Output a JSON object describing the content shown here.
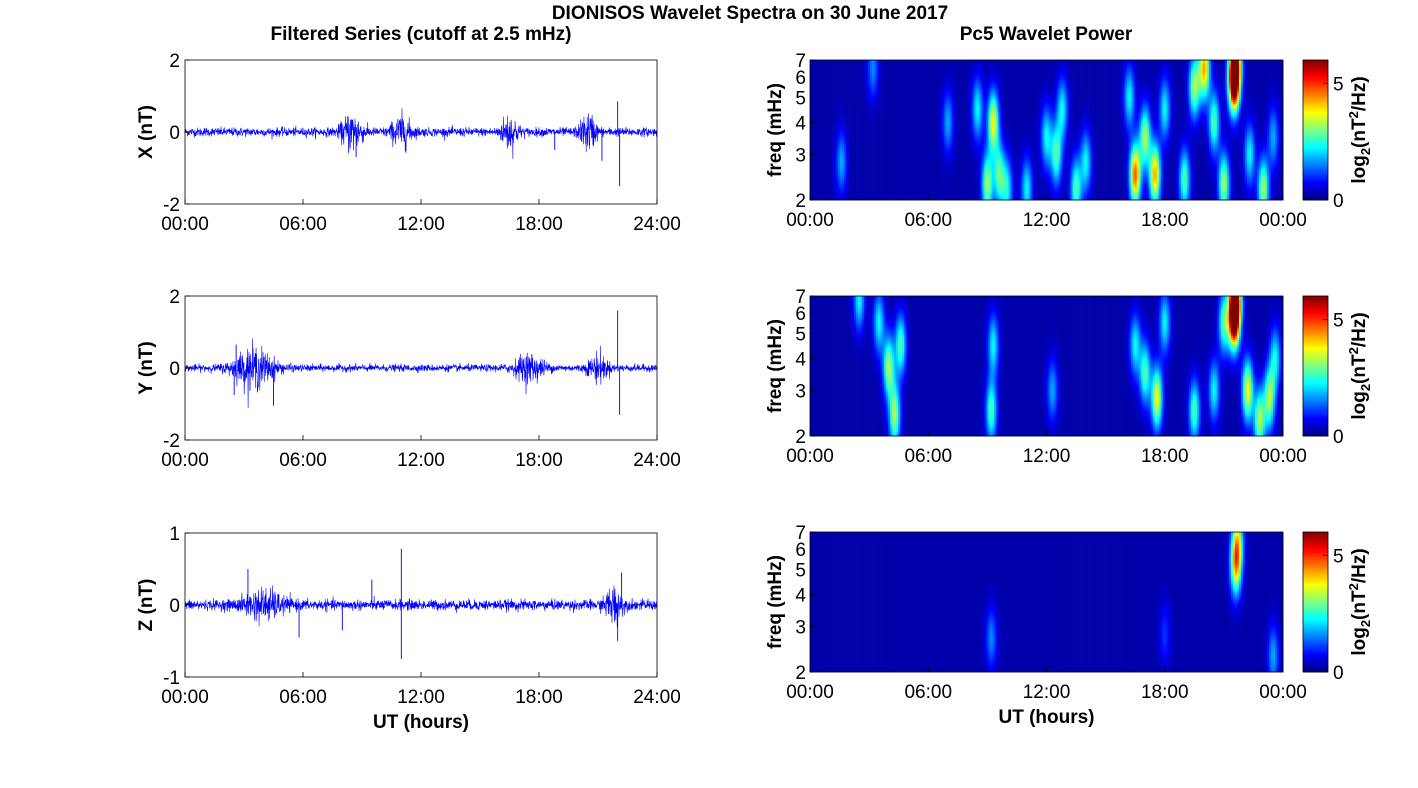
{
  "figure": {
    "title": "DIONISOS Wavelet Spectra on 30 June 2017",
    "left_title": "Filtered Series (cutoff at 2.5 mHz)",
    "right_title": "Pc5 Wavelet Power",
    "xlabel": "UT (hours)"
  },
  "colors": {
    "trace": "#0000ff",
    "axis": "#000000",
    "cmap": "jet",
    "background": "#000080"
  },
  "chart_data": [
    {
      "type": "line",
      "title": "Filtered Series (cutoff at 2.5 mHz)",
      "ylabel": "X (nT)",
      "xlabel": "",
      "x_range": [
        0,
        24
      ],
      "xticks": [
        "00:00",
        "06:00",
        "12:00",
        "18:00",
        "24:00"
      ],
      "ylim": [
        -2,
        2
      ],
      "yticks": [
        "-2",
        "0",
        "2"
      ],
      "baseline_noise_nT": 0.1,
      "bursts": [
        {
          "t": 8.5,
          "amp": 0.45,
          "width": 1.0
        },
        {
          "t": 11.0,
          "amp": 0.35,
          "width": 1.0
        },
        {
          "t": 16.5,
          "amp": 0.4,
          "width": 0.8
        },
        {
          "t": 20.5,
          "amp": 0.4,
          "width": 0.8
        }
      ],
      "spikes": [
        {
          "t": 22.0,
          "value": 0.85
        },
        {
          "t": 22.1,
          "value": -1.5
        },
        {
          "t": 21.2,
          "value": -0.8
        },
        {
          "t": 8.7,
          "value": -0.7
        },
        {
          "t": 18.8,
          "value": -0.5
        }
      ]
    },
    {
      "type": "line",
      "ylabel": "Y (nT)",
      "xlabel": "",
      "x_range": [
        0,
        24
      ],
      "xticks": [
        "00:00",
        "06:00",
        "12:00",
        "18:00",
        "24:00"
      ],
      "ylim": [
        -2,
        2
      ],
      "yticks": [
        "-2",
        "0",
        "2"
      ],
      "baseline_noise_nT": 0.08,
      "bursts": [
        {
          "t": 3.5,
          "amp": 0.45,
          "width": 2.0
        },
        {
          "t": 17.5,
          "amp": 0.3,
          "width": 1.5
        },
        {
          "t": 21.0,
          "amp": 0.3,
          "width": 1.0
        }
      ],
      "spikes": [
        {
          "t": 22.0,
          "value": 1.6
        },
        {
          "t": 22.1,
          "value": -1.3
        },
        {
          "t": 4.5,
          "value": -1.05
        },
        {
          "t": 2.6,
          "value": 0.65
        },
        {
          "t": 2.5,
          "value": -0.75
        }
      ]
    },
    {
      "type": "line",
      "ylabel": "Z (nT)",
      "xlabel": "UT (hours)",
      "x_range": [
        0,
        24
      ],
      "xticks": [
        "00:00",
        "06:00",
        "12:00",
        "18:00",
        "24:00"
      ],
      "ylim": [
        -1,
        1
      ],
      "yticks": [
        "-1",
        "0",
        "1"
      ],
      "baseline_noise_nT": 0.06,
      "bursts": [
        {
          "t": 4.0,
          "amp": 0.15,
          "width": 2.0
        },
        {
          "t": 21.8,
          "amp": 0.2,
          "width": 0.8
        }
      ],
      "spikes": [
        {
          "t": 11.0,
          "value": 0.78
        },
        {
          "t": 11.0,
          "value": -0.75
        },
        {
          "t": 3.2,
          "value": 0.5
        },
        {
          "t": 5.8,
          "value": -0.45
        },
        {
          "t": 8.0,
          "value": -0.35
        },
        {
          "t": 22.0,
          "value": -0.5
        },
        {
          "t": 22.2,
          "value": 0.45
        },
        {
          "t": 9.5,
          "value": 0.35
        }
      ]
    },
    {
      "type": "heatmap",
      "ylabel": "freq (mHz)",
      "xlabel": "",
      "x_range": [
        0,
        24
      ],
      "xticks": [
        "00:00",
        "06:00",
        "12:00",
        "18:00",
        "00:00"
      ],
      "ylim": [
        2,
        7
      ],
      "yticks": [
        "2",
        "3",
        "4",
        "5",
        "6",
        "7"
      ],
      "colorbar": {
        "label": "log2(nT^2/Hz)",
        "label_main": "log",
        "label_sub": "2",
        "label_rest": "(nT",
        "label_sup": "2",
        "label_end": "/Hz)",
        "range": [
          0,
          6
        ],
        "ticks": [
          "0",
          "5"
        ]
      },
      "blobs": [
        {
          "t": 1.6,
          "f": 2.8,
          "p": 1.5
        },
        {
          "t": 3.2,
          "f": 6.5,
          "p": 1.3
        },
        {
          "t": 7.0,
          "f": 4.0,
          "p": 1.5
        },
        {
          "t": 8.5,
          "f": 4.5,
          "p": 2.0
        },
        {
          "t": 9.3,
          "f": 4.0,
          "p": 3.5
        },
        {
          "t": 9.0,
          "f": 2.3,
          "p": 3.0
        },
        {
          "t": 9.6,
          "f": 2.5,
          "p": 2.5
        },
        {
          "t": 10.0,
          "f": 2.2,
          "p": 2.0
        },
        {
          "t": 11.0,
          "f": 2.2,
          "p": 2.0
        },
        {
          "t": 12.0,
          "f": 3.5,
          "p": 2.0
        },
        {
          "t": 12.5,
          "f": 3.0,
          "p": 2.5
        },
        {
          "t": 12.8,
          "f": 4.5,
          "p": 2.0
        },
        {
          "t": 13.5,
          "f": 2.2,
          "p": 2.5
        },
        {
          "t": 14.0,
          "f": 2.8,
          "p": 2.0
        },
        {
          "t": 16.2,
          "f": 5.0,
          "p": 2.0
        },
        {
          "t": 16.5,
          "f": 2.5,
          "p": 4.5
        },
        {
          "t": 17.0,
          "f": 3.5,
          "p": 3.0
        },
        {
          "t": 17.5,
          "f": 2.5,
          "p": 4.0
        },
        {
          "t": 18.0,
          "f": 4.5,
          "p": 2.0
        },
        {
          "t": 19.0,
          "f": 2.4,
          "p": 2.5
        },
        {
          "t": 19.5,
          "f": 5.5,
          "p": 3.0
        },
        {
          "t": 20.0,
          "f": 6.5,
          "p": 4.0
        },
        {
          "t": 20.5,
          "f": 4.0,
          "p": 2.5
        },
        {
          "t": 21.0,
          "f": 2.3,
          "p": 3.0
        },
        {
          "t": 21.5,
          "f": 5.8,
          "p": 6.0
        },
        {
          "t": 21.6,
          "f": 6.8,
          "p": 4.5
        },
        {
          "t": 22.3,
          "f": 3.0,
          "p": 2.0
        },
        {
          "t": 23.0,
          "f": 2.2,
          "p": 3.0
        },
        {
          "t": 23.5,
          "f": 3.5,
          "p": 1.5
        }
      ]
    },
    {
      "type": "heatmap",
      "ylabel": "freq (mHz)",
      "xlabel": "",
      "x_range": [
        0,
        24
      ],
      "xticks": [
        "00:00",
        "06:00",
        "12:00",
        "18:00",
        "00:00"
      ],
      "ylim": [
        2,
        7
      ],
      "yticks": [
        "2",
        "3",
        "4",
        "5",
        "6",
        "7"
      ],
      "colorbar": {
        "label": "log2(nT^2/Hz)",
        "label_main": "log",
        "label_sub": "2",
        "label_rest": "(nT",
        "label_sup": "2",
        "label_end": "/Hz)",
        "range": [
          0,
          6
        ],
        "ticks": [
          "0",
          "5"
        ]
      },
      "blobs": [
        {
          "t": 2.5,
          "f": 6.8,
          "p": 2.0
        },
        {
          "t": 3.5,
          "f": 5.5,
          "p": 2.0
        },
        {
          "t": 4.0,
          "f": 3.7,
          "p": 3.0
        },
        {
          "t": 4.3,
          "f": 2.4,
          "p": 3.0
        },
        {
          "t": 4.6,
          "f": 4.5,
          "p": 2.5
        },
        {
          "t": 9.2,
          "f": 2.5,
          "p": 2.5
        },
        {
          "t": 9.3,
          "f": 4.5,
          "p": 2.0
        },
        {
          "t": 12.3,
          "f": 3.0,
          "p": 1.5
        },
        {
          "t": 16.5,
          "f": 4.5,
          "p": 2.0
        },
        {
          "t": 17.0,
          "f": 3.5,
          "p": 2.5
        },
        {
          "t": 17.6,
          "f": 2.8,
          "p": 3.5
        },
        {
          "t": 18.0,
          "f": 5.5,
          "p": 2.0
        },
        {
          "t": 19.5,
          "f": 2.5,
          "p": 2.5
        },
        {
          "t": 20.5,
          "f": 3.0,
          "p": 2.0
        },
        {
          "t": 21.0,
          "f": 5.5,
          "p": 2.5
        },
        {
          "t": 21.5,
          "f": 5.8,
          "p": 6.0
        },
        {
          "t": 21.6,
          "f": 6.8,
          "p": 5.0
        },
        {
          "t": 22.2,
          "f": 3.0,
          "p": 3.5
        },
        {
          "t": 22.8,
          "f": 2.3,
          "p": 3.0
        },
        {
          "t": 23.3,
          "f": 2.8,
          "p": 3.0
        },
        {
          "t": 23.6,
          "f": 4.0,
          "p": 2.0
        }
      ]
    },
    {
      "type": "heatmap",
      "ylabel": "freq (mHz)",
      "xlabel": "UT (hours)",
      "x_range": [
        0,
        24
      ],
      "xticks": [
        "00:00",
        "06:00",
        "12:00",
        "18:00",
        "00:00"
      ],
      "ylim": [
        2,
        7
      ],
      "yticks": [
        "2",
        "3",
        "4",
        "5",
        "6",
        "7"
      ],
      "colorbar": {
        "label": "log2(nT^2/Hz)",
        "label_main": "log",
        "label_sub": "2",
        "label_rest": "(nT",
        "label_sup": "2",
        "label_end": "/Hz)",
        "range": [
          0,
          6
        ],
        "ticks": [
          "0",
          "5"
        ]
      },
      "blobs": [
        {
          "t": 21.6,
          "f": 5.2,
          "p": 3.5
        },
        {
          "t": 21.7,
          "f": 6.5,
          "p": 2.5
        },
        {
          "t": 9.2,
          "f": 2.7,
          "p": 1.3
        },
        {
          "t": 23.5,
          "f": 2.3,
          "p": 1.5
        },
        {
          "t": 18.0,
          "f": 2.8,
          "p": 0.8
        }
      ]
    }
  ]
}
